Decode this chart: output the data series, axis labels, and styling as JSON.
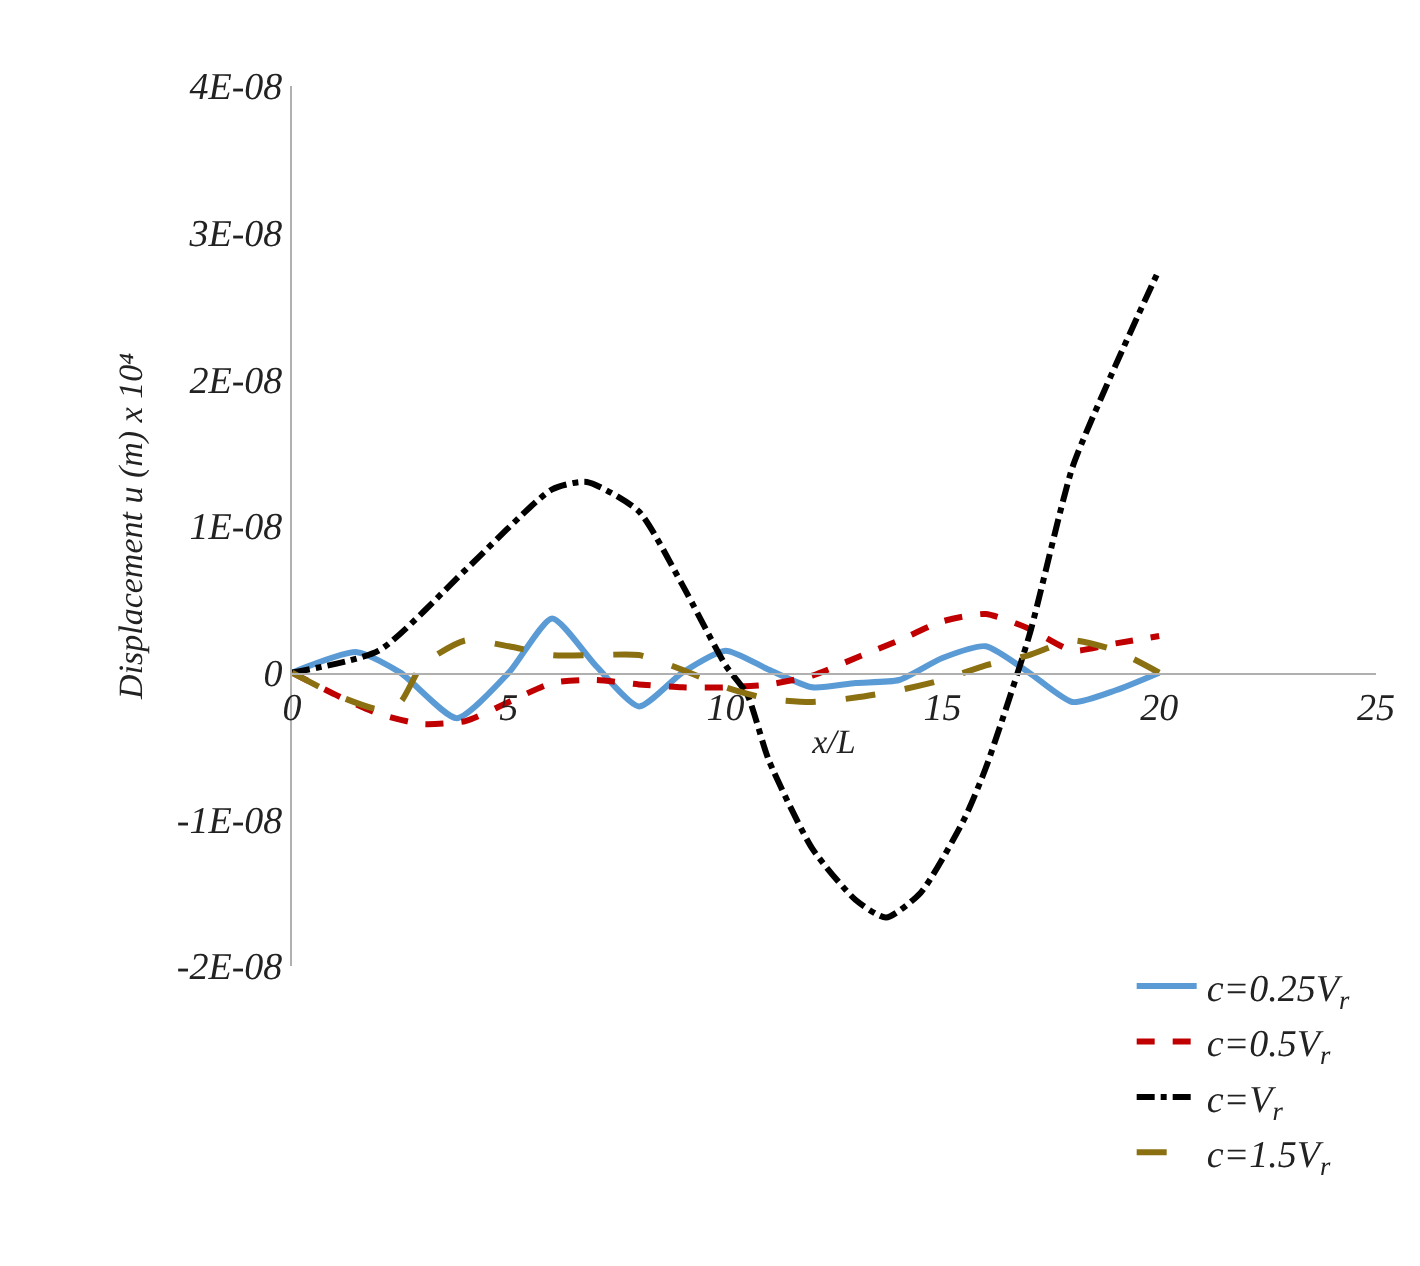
{
  "chart_data": {
    "type": "line",
    "xlabel": "x/L",
    "ylabel": "Displacement u (m) x 10⁴",
    "xlim": [
      0,
      25
    ],
    "xticks": [
      0,
      5,
      10,
      15,
      20,
      25
    ],
    "ylim": [
      -2e-08,
      4e-08
    ],
    "yticks": [
      {
        "value": -2e-08,
        "label": "-2E-08"
      },
      {
        "value": -1e-08,
        "label": "-1E-08"
      },
      0,
      {
        "value": 1e-08,
        "label": "1E-08"
      },
      {
        "value": 2e-08,
        "label": "2E-08"
      },
      {
        "value": 3e-08,
        "label": "3E-08"
      },
      {
        "value": 4e-08,
        "label": "4E-08"
      }
    ],
    "legend": "bottom right",
    "marker": "none",
    "series": [
      {
        "name": "c=0.25V$_{r}$",
        "color": "#5b9bd5",
        "line_style": "solid",
        "x": [
          0,
          1.5,
          2.5,
          3.8,
          5,
          6,
          7,
          8,
          9,
          10,
          11,
          12,
          13,
          14,
          15,
          16,
          17,
          18,
          19,
          20
        ],
        "values": [
          0,
          1.4e-09,
          0,
          -3.1e-09,
          0,
          3.7e-09,
          5e-10,
          -2.3e-09,
          0,
          1.5e-09,
          2e-10,
          -1e-09,
          -7e-10,
          -5e-10,
          1e-09,
          1.8e-09,
          0,
          -2e-09,
          -1.2e-09,
          0
        ]
      },
      {
        "name": "c=0.5V$_{r}$",
        "color": "#c00000",
        "line_style": "dotted",
        "x": [
          0,
          1,
          2,
          3,
          4,
          5,
          6,
          7,
          8,
          9,
          10,
          11,
          12,
          13,
          14,
          15,
          16,
          17,
          18,
          19,
          20
        ],
        "values": [
          0,
          -1.5e-09,
          -2.8e-09,
          -3.5e-09,
          -3.3e-09,
          -2e-09,
          -7e-10,
          -5e-10,
          -8e-10,
          -1e-09,
          -1e-09,
          -8e-10,
          -2e-10,
          1e-09,
          2.2e-09,
          3.5e-09,
          4e-09,
          3e-09,
          1.5e-09,
          2e-09,
          2.5e-09
        ]
      },
      {
        "name": "c=V$_{r}$",
        "color": "#000000",
        "line_style": "dashdot",
        "x": [
          0,
          2,
          4,
          6,
          6.8,
          8,
          9,
          10,
          10.5,
          11,
          12,
          13,
          13.7,
          14.5,
          15.5,
          16,
          17,
          18,
          19,
          20
        ],
        "values": [
          0,
          1.5e-09,
          7e-09,
          1.25e-08,
          1.3e-08,
          1.1e-08,
          6e-09,
          5e-10,
          -1.5e-09,
          -6e-09,
          -1.2e-08,
          -1.55e-08,
          -1.67e-08,
          -1.5e-08,
          -1e-08,
          -6.5e-09,
          2.5e-09,
          1.4e-08,
          2.1e-08,
          2.75e-08
        ]
      },
      {
        "name": "c=1.5V$_{r}$",
        "color": "#8b7012",
        "line_style": "dashed",
        "x": [
          0,
          1,
          2,
          2.5,
          3,
          4,
          5,
          6,
          7,
          8,
          9,
          10,
          11,
          12,
          13,
          14,
          15,
          16,
          17,
          18,
          19,
          20
        ],
        "values": [
          0,
          -1.5e-09,
          -2.5e-09,
          -2e-09,
          5e-10,
          2.2e-09,
          1.8e-09,
          1.2e-09,
          1.2e-09,
          1.2e-09,
          2e-10,
          -1e-09,
          -1.8e-09,
          -2e-09,
          -1.7e-09,
          -1.2e-09,
          -5e-10,
          5e-10,
          1.2e-09,
          2.2e-09,
          1.5e-09,
          0
        ]
      }
    ]
  }
}
